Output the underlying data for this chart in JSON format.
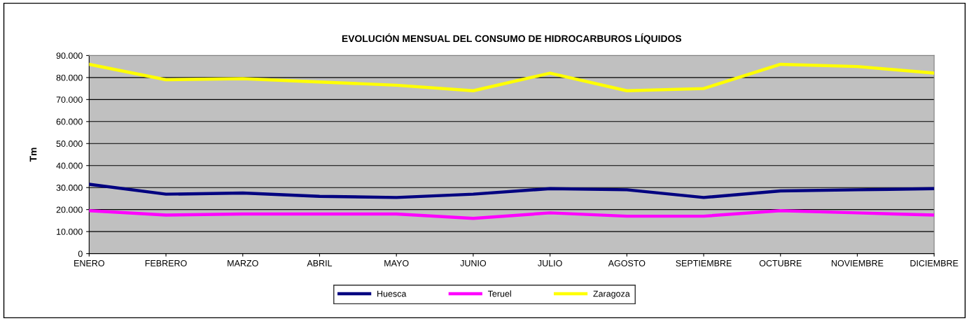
{
  "chart_data": {
    "type": "line",
    "title": "EVOLUCIÓN MENSUAL DEL CONSUMO DE HIDROCARBUROS LÍQUIDOS",
    "ylabel": "Tm",
    "categories": [
      "ENERO",
      "FEBRERO",
      "MARZO",
      "ABRIL",
      "MAYO",
      "JUNIO",
      "JULIO",
      "AGOSTO",
      "SEPTIEMBRE",
      "OCTUBRE",
      "NOVIEMBRE",
      "DICIEMBRE"
    ],
    "series": [
      {
        "name": "Huesca",
        "color": "#000080",
        "values": [
          31500,
          27000,
          27500,
          26000,
          25500,
          27000,
          29500,
          29000,
          25500,
          28500,
          29000,
          29500
        ]
      },
      {
        "name": "Teruel",
        "color": "#ff00ff",
        "values": [
          19500,
          17500,
          18000,
          18000,
          18000,
          16000,
          18500,
          17000,
          17000,
          19500,
          18500,
          17500
        ]
      },
      {
        "name": "Zaragoza",
        "color": "#ffff00",
        "values": [
          86000,
          79000,
          79500,
          78000,
          76500,
          74000,
          82000,
          74000,
          75000,
          86000,
          85000,
          82000
        ]
      }
    ],
    "ylim": [
      0,
      90000
    ],
    "yticks": [
      0,
      {
        "value": 10000,
        "label": "10.000"
      },
      {
        "value": 20000,
        "label": "20.000"
      },
      {
        "value": 30000,
        "label": "30.000"
      },
      {
        "value": 40000,
        "label": "40.000"
      },
      {
        "value": 50000,
        "label": "50.000"
      },
      {
        "value": 60000,
        "label": "60.000"
      },
      {
        "value": 70000,
        "label": "70.000"
      },
      {
        "value": 80000,
        "label": "80.000"
      },
      {
        "value": 90000,
        "label": "90.000"
      }
    ],
    "grid": "y",
    "legend": "bottom",
    "marker": "none",
    "line_style": "solid"
  }
}
